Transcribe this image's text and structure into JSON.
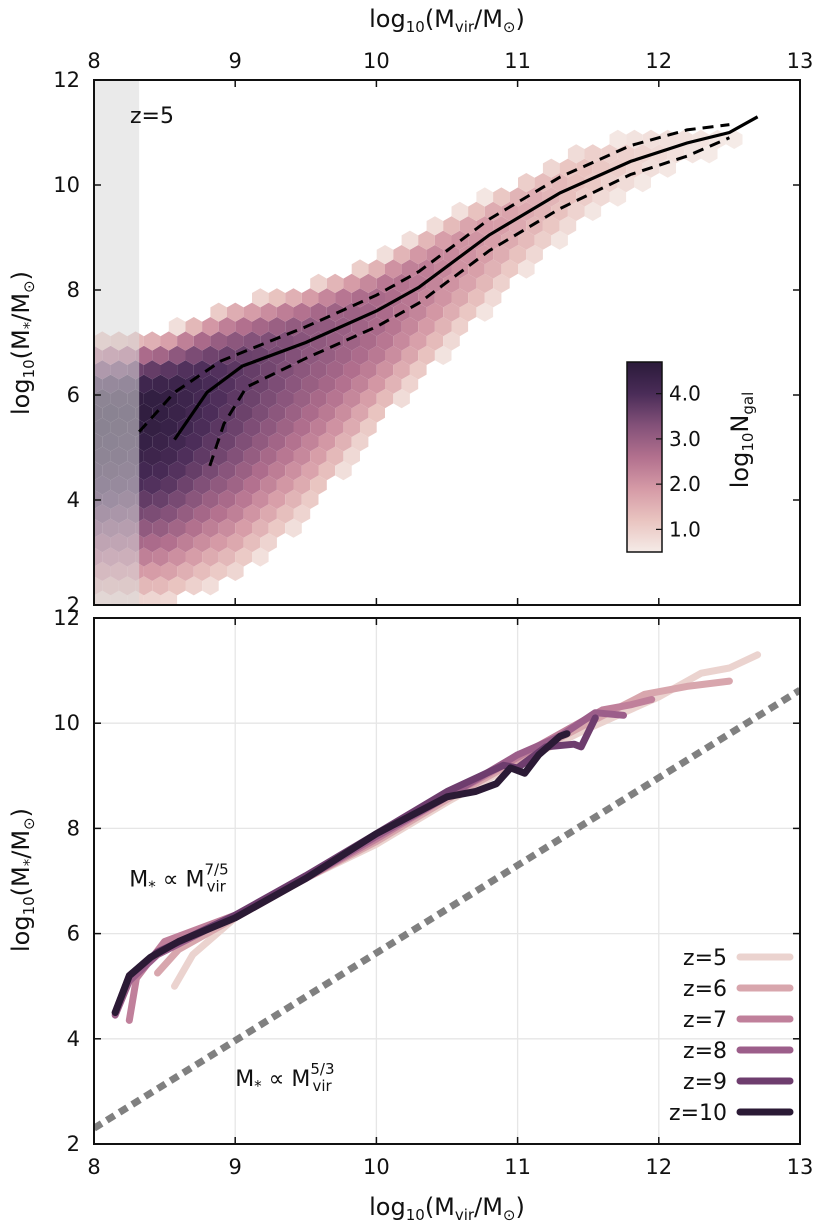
{
  "chart_data": [
    {
      "type": "heatmap",
      "panel": "top",
      "annotation": "z=5",
      "top_xlabel": "log10(Mvir/M⊙)",
      "ylabel": "log10(M*/M⊙)",
      "xlim": [
        8,
        13
      ],
      "ylim": [
        2,
        12
      ],
      "xticks": [
        "8",
        "9",
        "10",
        "11",
        "12",
        "13"
      ],
      "yticks": [
        "2",
        "4",
        "6",
        "8",
        "10",
        "12"
      ],
      "shaded_region_x": [
        8,
        8.32
      ],
      "colorbar": {
        "label": "log10Ngal",
        "range": [
          0.5,
          4.7
        ],
        "ticks": [
          "1.0",
          "2.0",
          "3.0",
          "4.0"
        ],
        "colors": [
          "#f5ebe7",
          "#e9c4c0",
          "#d59aa6",
          "#b2708e",
          "#835179",
          "#4a2c58",
          "#2a1a3a"
        ]
      },
      "density_ridge": {
        "x": [
          8.0,
          8.5,
          9.0,
          9.5,
          10.0,
          10.5,
          11.0,
          11.5,
          12.0,
          12.5
        ],
        "y_center": [
          5.6,
          5.9,
          6.4,
          7.1,
          7.7,
          8.6,
          9.5,
          10.3,
          10.7,
          11.0
        ],
        "y_low": [
          2.0,
          2.0,
          2.5,
          3.6,
          5.3,
          6.8,
          8.2,
          9.4,
          10.2,
          10.7
        ],
        "y_high": [
          7.1,
          7.2,
          7.8,
          8.1,
          8.6,
          9.4,
          10.1,
          10.8,
          11.0,
          11.1
        ],
        "peak_log10N": [
          4.7,
          4.5,
          3.8,
          3.2,
          2.8,
          2.2,
          1.7,
          1.2,
          0.8,
          0.5
        ]
      },
      "median": {
        "x": [
          8.57,
          8.8,
          9.05,
          9.5,
          10.0,
          10.3,
          10.8,
          11.3,
          11.8,
          12.2,
          12.5,
          12.7
        ],
        "y": [
          5.15,
          6.05,
          6.55,
          7.0,
          7.6,
          8.05,
          9.05,
          9.85,
          10.45,
          10.8,
          11.0,
          11.3
        ]
      },
      "p16": {
        "x": [
          8.82,
          8.92,
          9.08,
          9.5,
          10.0,
          10.3,
          10.8,
          11.3,
          11.8,
          12.2,
          12.5
        ],
        "y": [
          4.65,
          5.45,
          6.15,
          6.7,
          7.3,
          7.75,
          8.75,
          9.55,
          10.2,
          10.55,
          10.9
        ]
      },
      "p84": {
        "x": [
          8.32,
          8.57,
          8.9,
          9.5,
          10.0,
          10.3,
          10.8,
          11.3,
          11.8,
          12.2,
          12.5
        ],
        "y": [
          5.3,
          6.05,
          6.65,
          7.3,
          7.9,
          8.35,
          9.35,
          10.15,
          10.75,
          11.05,
          11.15
        ]
      }
    },
    {
      "type": "line",
      "panel": "bottom",
      "xlabel": "log10(Mvir/M⊙)",
      "ylabel": "log10(M*/M⊙)",
      "xlim": [
        8,
        13
      ],
      "ylim": [
        2,
        12
      ],
      "grid": true,
      "xticks": [
        "8",
        "9",
        "10",
        "11",
        "12",
        "13"
      ],
      "yticks": [
        "2",
        "4",
        "6",
        "8",
        "10",
        "12"
      ],
      "annotations": [
        {
          "base": "M",
          "sub": "*",
          "mid": " ∝ ",
          "base2": "M",
          "sub2": "vir",
          "sup2": "7/5",
          "x": 8.25,
          "y": 6.9
        },
        {
          "base": "M",
          "sub": "*",
          "mid": " ∝ ",
          "base2": "M",
          "sub2": "vir",
          "sup2": "5/3",
          "x": 9.0,
          "y": 3.1
        }
      ],
      "reference_line": {
        "label": "M* ∝ Mvir^5/3",
        "x": [
          8,
          13
        ],
        "y": [
          2.3,
          10.63
        ],
        "color": "#808080",
        "style": "dotted"
      },
      "legend_position": "bottom-right",
      "series": [
        {
          "name": "z=5",
          "color": "#ebd3cf",
          "x": [
            8.57,
            8.7,
            9.0,
            9.5,
            10.0,
            10.5,
            11.0,
            11.5,
            12.0,
            12.3,
            12.5,
            12.7
          ],
          "y": [
            5.0,
            5.6,
            6.3,
            7.05,
            7.7,
            8.5,
            9.25,
            9.9,
            10.5,
            10.95,
            11.05,
            11.3
          ]
        },
        {
          "name": "z=6",
          "color": "#d8a6ad",
          "x": [
            8.45,
            8.6,
            9.0,
            9.5,
            10.0,
            10.5,
            11.0,
            11.5,
            11.9,
            12.2,
            12.5
          ],
          "y": [
            5.25,
            5.7,
            6.3,
            7.05,
            7.75,
            8.55,
            9.3,
            10.0,
            10.55,
            10.7,
            10.8
          ]
        },
        {
          "name": "z=7",
          "color": "#c0809b",
          "x": [
            8.25,
            8.3,
            8.5,
            9.0,
            9.5,
            10.0,
            10.5,
            11.0,
            11.4,
            11.6,
            11.8,
            11.95
          ],
          "y": [
            4.35,
            5.15,
            5.85,
            6.35,
            7.05,
            7.8,
            8.6,
            9.35,
            9.95,
            10.25,
            10.35,
            10.45
          ]
        },
        {
          "name": "z=8",
          "color": "#9c5e8a",
          "x": [
            8.15,
            8.25,
            8.45,
            9.0,
            9.5,
            10.0,
            10.5,
            11.0,
            11.3,
            11.55,
            11.75
          ],
          "y": [
            4.45,
            5.1,
            5.6,
            6.35,
            7.05,
            7.85,
            8.6,
            9.4,
            9.75,
            10.2,
            10.15
          ]
        },
        {
          "name": "z=9",
          "color": "#6e3d6e",
          "x": [
            8.15,
            8.25,
            8.45,
            9.0,
            9.5,
            10.0,
            10.5,
            10.9,
            11.0,
            11.2,
            11.4,
            11.45,
            11.55
          ],
          "y": [
            4.5,
            5.2,
            5.65,
            6.35,
            7.1,
            7.9,
            8.7,
            9.2,
            9.15,
            9.55,
            9.6,
            9.55,
            10.1
          ]
        },
        {
          "name": "z=10",
          "color": "#2b1a35",
          "x": [
            8.15,
            8.25,
            8.4,
            8.6,
            9.0,
            9.5,
            10.0,
            10.5,
            10.7,
            10.85,
            10.95,
            11.05,
            11.15,
            11.3,
            11.35
          ],
          "y": [
            4.5,
            5.2,
            5.55,
            5.85,
            6.3,
            7.05,
            7.9,
            8.6,
            8.7,
            8.85,
            9.15,
            9.05,
            9.4,
            9.75,
            9.8
          ]
        }
      ]
    }
  ]
}
